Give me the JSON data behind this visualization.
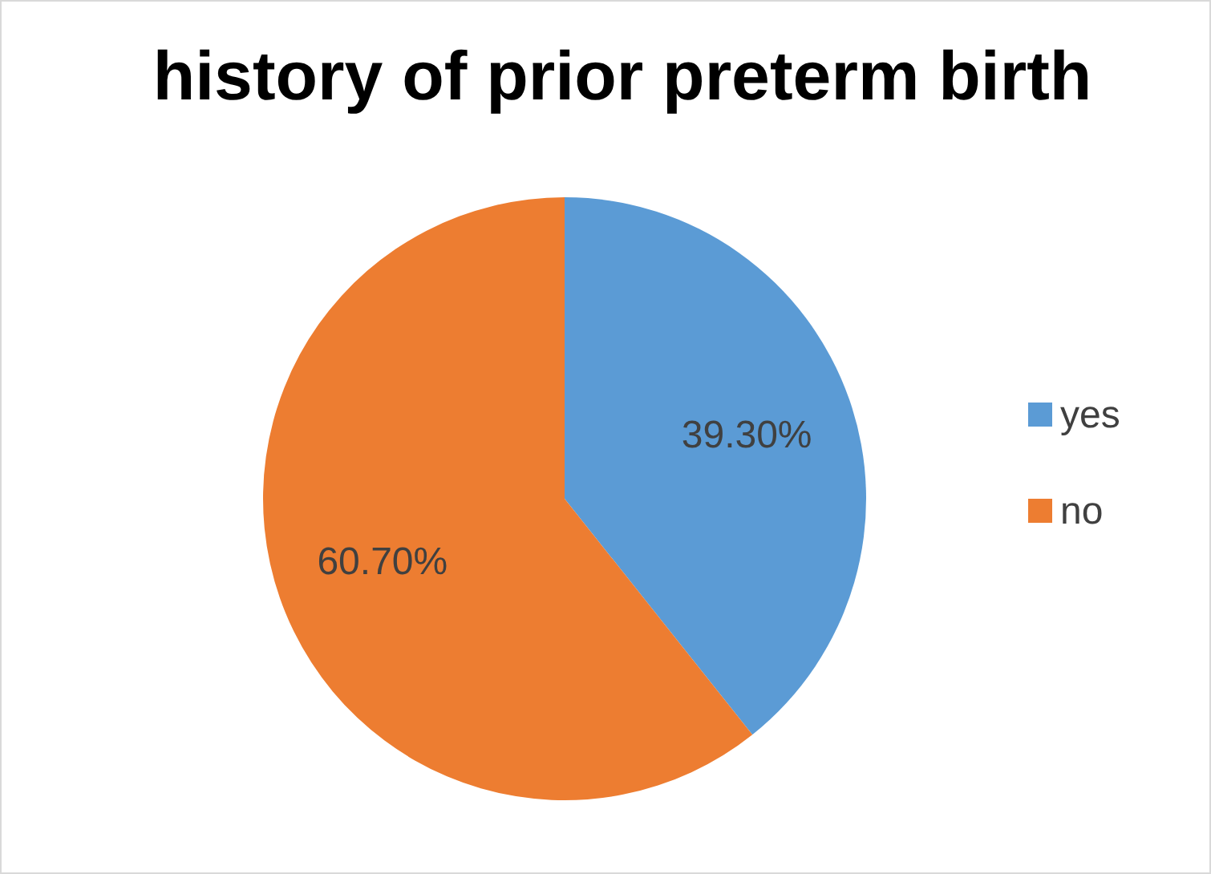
{
  "chart_data": {
    "type": "pie",
    "title": "history of prior preterm birth",
    "categories": [
      "yes",
      "no"
    ],
    "values": [
      39.3,
      60.7
    ],
    "colors": [
      "#5b9bd5",
      "#ed7d31"
    ],
    "value_labels": [
      "39.30%",
      "60.70%"
    ],
    "legend": "right"
  }
}
